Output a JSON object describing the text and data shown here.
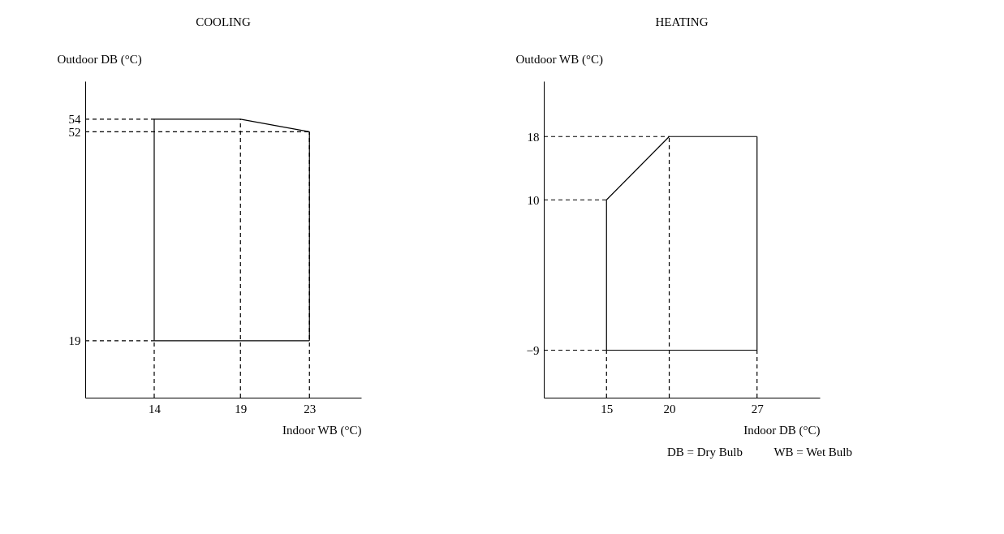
{
  "chart_data": [
    {
      "type": "line",
      "title": "COOLING",
      "xlabel": "Indoor WB (°C)",
      "ylabel": "Outdoor DB (°C)",
      "xlim": [
        10,
        26
      ],
      "ylim": [
        10,
        60
      ],
      "xticks": [
        14,
        19,
        23
      ],
      "yticks": [
        19,
        52,
        54
      ],
      "series": [
        {
          "color": "#000000",
          "line_style": "solid",
          "x": [
            14,
            14
          ],
          "values": [
            19,
            54
          ]
        },
        {
          "color": "#000000",
          "line_style": "solid",
          "x": [
            14,
            19,
            23
          ],
          "values": [
            54,
            54,
            52
          ]
        },
        {
          "color": "#000000",
          "line_style": "solid",
          "x": [
            23,
            23
          ],
          "values": [
            52,
            19
          ]
        },
        {
          "color": "#000000",
          "line_style": "solid",
          "x": [
            14,
            23
          ],
          "values": [
            19,
            19
          ]
        },
        {
          "color": "#000000",
          "line_style": "dashed",
          "x": [
            10,
            14
          ],
          "values": [
            54,
            54
          ]
        },
        {
          "color": "#000000",
          "line_style": "dashed",
          "x": [
            10,
            23
          ],
          "values": [
            52,
            52
          ]
        },
        {
          "color": "#000000",
          "line_style": "dashed",
          "x": [
            10,
            14
          ],
          "values": [
            19,
            19
          ]
        },
        {
          "color": "#000000",
          "line_style": "dashed",
          "x": [
            14,
            14
          ],
          "values": [
            10,
            19
          ]
        },
        {
          "color": "#000000",
          "line_style": "dashed",
          "x": [
            19,
            19
          ],
          "values": [
            10,
            54
          ]
        },
        {
          "color": "#000000",
          "line_style": "dashed",
          "x": [
            23,
            23
          ],
          "values": [
            10,
            52
          ]
        }
      ]
    },
    {
      "type": "line",
      "title": "HEATING",
      "xlabel": "Indoor DB (°C)",
      "ylabel": "Outdoor WB (°C)",
      "xlim": [
        10,
        32
      ],
      "ylim": [
        -15,
        25
      ],
      "xticks": [
        15,
        20,
        27
      ],
      "yticks": [
        -9,
        10,
        18
      ],
      "annotations": [
        "DB = Dry Bulb",
        "WB = Wet Bulb"
      ],
      "series": [
        {
          "color": "#000000",
          "line_style": "solid",
          "x": [
            15,
            15
          ],
          "values": [
            -9,
            10
          ]
        },
        {
          "color": "#000000",
          "line_style": "solid",
          "x": [
            15,
            20,
            27
          ],
          "values": [
            10,
            18,
            18
          ]
        },
        {
          "color": "#000000",
          "line_style": "solid",
          "x": [
            27,
            27
          ],
          "values": [
            18,
            -9
          ]
        },
        {
          "color": "#000000",
          "line_style": "solid",
          "x": [
            15,
            27
          ],
          "values": [
            -9,
            -9
          ]
        },
        {
          "color": "#000000",
          "line_style": "dashed",
          "x": [
            10,
            20
          ],
          "values": [
            18,
            18
          ]
        },
        {
          "color": "#000000",
          "line_style": "dashed",
          "x": [
            10,
            15
          ],
          "values": [
            10,
            10
          ]
        },
        {
          "color": "#000000",
          "line_style": "dashed",
          "x": [
            10,
            15
          ],
          "values": [
            -9,
            -9
          ]
        },
        {
          "color": "#000000",
          "line_style": "dashed",
          "x": [
            15,
            15
          ],
          "values": [
            -15,
            -9
          ]
        },
        {
          "color": "#000000",
          "line_style": "dashed",
          "x": [
            20,
            20
          ],
          "values": [
            -15,
            18
          ]
        },
        {
          "color": "#000000",
          "line_style": "dashed",
          "x": [
            27,
            27
          ],
          "values": [
            -15,
            -9
          ]
        }
      ]
    }
  ]
}
